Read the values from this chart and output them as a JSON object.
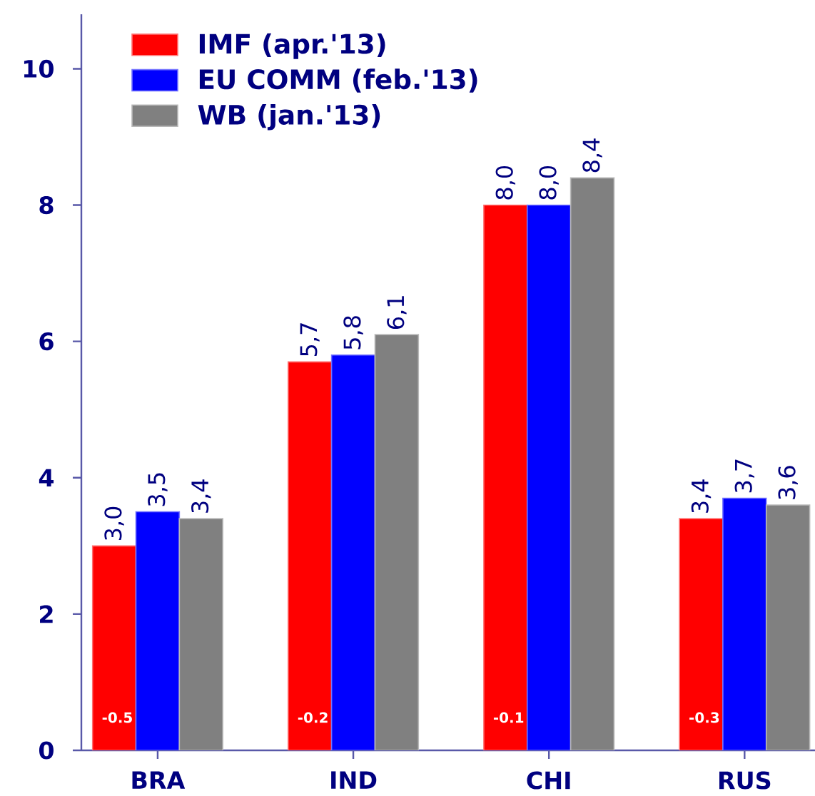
{
  "chart_data": {
    "type": "bar",
    "categories": [
      "BRA",
      "IND",
      "CHI",
      "RUS"
    ],
    "series": [
      {
        "name": "IMF (apr.'13)",
        "color": "#ff0000",
        "values": [
          3.0,
          5.7,
          8.0,
          3.4
        ],
        "value_labels": [
          "3,0",
          "5,7",
          "8,0",
          "3,4"
        ]
      },
      {
        "name": "EU COMM (feb.'13)",
        "color": "#0000ff",
        "values": [
          3.5,
          5.8,
          8.0,
          3.7
        ],
        "value_labels": [
          "3,5",
          "5,8",
          "8,0",
          "3,7"
        ]
      },
      {
        "name": "WB (jan.'13)",
        "color": "#808080",
        "values": [
          3.4,
          6.1,
          8.4,
          3.6
        ],
        "value_labels": [
          "3,4",
          "6,1",
          "8,4",
          "3,6"
        ]
      }
    ],
    "ylim": [
      0,
      10.8
    ],
    "yticks": [
      0,
      2,
      4,
      6,
      8,
      10
    ],
    "legend": "top left",
    "annotations": [
      "-0.5",
      "-0.2",
      "-0.1",
      "-0.3"
    ]
  }
}
